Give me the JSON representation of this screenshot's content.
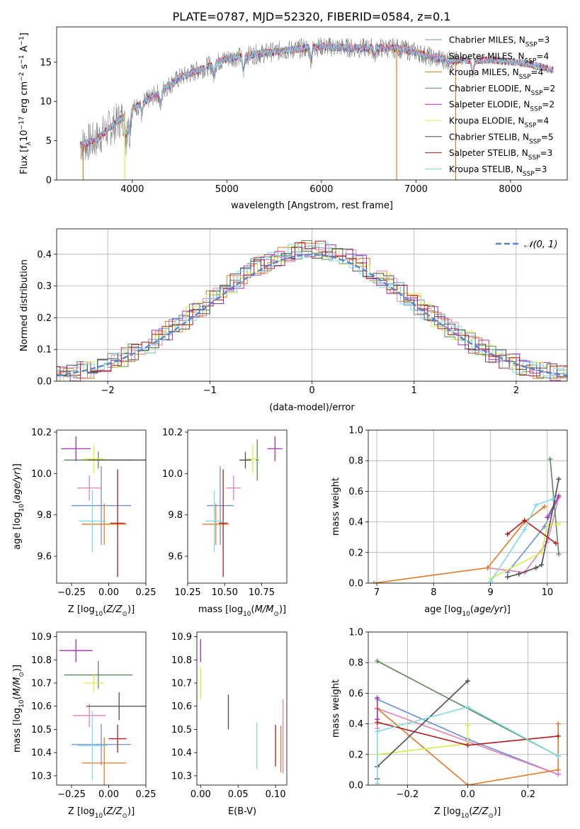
{
  "figure": {
    "title": "PLATE=0787, MJD=52320, FIBERID=0584, z=0.1"
  },
  "legend_entries": [
    {
      "label": "Chabrier MILES, N",
      "sub": "SSP",
      "suffix": "=3",
      "color": "#6b8fd6"
    },
    {
      "label": "Salpeter MILES, N",
      "sub": "SSP",
      "suffix": "=4",
      "color": "#e87fb7"
    },
    {
      "label": "Kroupa MILES, N",
      "sub": "SSP",
      "suffix": "=4",
      "color": "#e07b27"
    },
    {
      "label": "Chabrier ELODIE, N",
      "sub": "SSP",
      "suffix": "=2",
      "color": "#5a8a5a"
    },
    {
      "label": "Salpeter ELODIE, N",
      "sub": "SSP",
      "suffix": "=2",
      "color": "#a52fb5"
    },
    {
      "label": "Kroupa ELODIE, N",
      "sub": "SSP",
      "suffix": "=4",
      "color": "#d6ec4d"
    },
    {
      "label": "Chabrier STELIB, N",
      "sub": "SSP",
      "suffix": "=5",
      "color": "#4d4d4d"
    },
    {
      "label": "Salpeter STELIB, N",
      "sub": "SSP",
      "suffix": "=3",
      "color": "#b01d1d"
    },
    {
      "label": "Kroupa STELIB, N",
      "sub": "SSP",
      "suffix": "=3",
      "color": "#7edbe0"
    }
  ],
  "chart_data": [
    {
      "id": "spectrum",
      "type": "line",
      "xlabel": "wavelength [Angstrom, rest frame]",
      "ylabel": "Flux [f",
      "ylabel_full": "Flux [fλ10⁻¹⁷ erg cm⁻² s⁻¹ A⁻¹]",
      "xlim": [
        3200,
        8600
      ],
      "ylim": [
        0,
        19.5
      ],
      "xticks": [
        4000,
        5000,
        6000,
        7000,
        8000
      ],
      "yticks": [
        0,
        5,
        10,
        15
      ],
      "data_grey": {
        "color": "#808080",
        "x_range": [
          3450,
          7430
        ]
      },
      "continuum_points": [
        [
          3450,
          4.5
        ],
        [
          3600,
          5
        ],
        [
          3800,
          7
        ],
        [
          4000,
          9
        ],
        [
          4200,
          10.5
        ],
        [
          4500,
          13
        ],
        [
          4800,
          14.5
        ],
        [
          5000,
          15.5
        ],
        [
          5300,
          16
        ],
        [
          5600,
          16.5
        ],
        [
          6000,
          17
        ],
        [
          6400,
          16.8
        ],
        [
          6800,
          16.8
        ],
        [
          7000,
          16.3
        ],
        [
          7200,
          15.5
        ],
        [
          7400,
          15.2
        ],
        [
          7800,
          15.3
        ],
        [
          8200,
          14.8
        ],
        [
          8450,
          14
        ]
      ]
    },
    {
      "id": "residuals",
      "type": "histogram",
      "xlabel": "(data-model)/error",
      "ylabel": "Normed distribution",
      "xlim": [
        -2.5,
        2.5
      ],
      "ylim": [
        0,
        0.48
      ],
      "xticks": [
        -2,
        -1,
        0,
        1,
        2
      ],
      "yticks": [
        0.0,
        0.1,
        0.2,
        0.3,
        0.4
      ],
      "grid": true,
      "legend": "𝒩(0, 1)",
      "reference_curve": "normal(0,1)",
      "bin_width": 0.1
    },
    {
      "id": "age_vs_Z",
      "type": "scatter",
      "xlabel": "Z [log",
      "ylabel": "age  [log",
      "xlim": [
        -0.35,
        0.25
      ],
      "ylim": [
        9.47,
        10.21
      ],
      "xticks": [
        -0.25,
        0.0,
        0.25
      ],
      "yticks": [
        9.6,
        9.8,
        10.0,
        10.2
      ],
      "points": [
        {
          "color": "#6b8fd6",
          "x": -0.05,
          "xerr": 0.2,
          "y": 9.845,
          "yerr": 0.19
        },
        {
          "color": "#e87fb7",
          "x": -0.13,
          "xerr": 0.08,
          "y": 9.93,
          "yerr": 0.06
        },
        {
          "color": "#e07b27",
          "x": -0.03,
          "xerr": 0.15,
          "y": 9.755,
          "yerr": 0.1
        },
        {
          "color": "#5a8a5a",
          "x": -0.07,
          "xerr": 0.23,
          "y": 10.065,
          "yerr": 0.04
        },
        {
          "color": "#a52fb5",
          "x": -0.22,
          "xerr": 0.1,
          "y": 10.12,
          "yerr": 0.06
        },
        {
          "color": "#d6ec4d",
          "x": -0.1,
          "xerr": 0.07,
          "y": 10.07,
          "yerr": 0.07
        },
        {
          "color": "#4d4d4d",
          "x": 0.07,
          "xerr": 0.21,
          "y": 10.065,
          "yerr": 0.0
        },
        {
          "color": "#b01d1d",
          "x": 0.06,
          "xerr": 0.05,
          "y": 9.76,
          "yerr": 0.26
        },
        {
          "color": "#7edbe0",
          "x": -0.11,
          "xerr": 0.09,
          "y": 9.77,
          "yerr": 0.15
        }
      ]
    },
    {
      "id": "age_vs_mass",
      "type": "scatter",
      "xlabel": "mass [log",
      "xlim": [
        10.25,
        10.92
      ],
      "ylim": [
        9.47,
        10.21
      ],
      "xticks": [
        10.25,
        10.5,
        10.75
      ],
      "yticks": [
        9.6,
        9.8,
        10.0,
        10.2
      ],
      "points": [
        {
          "color": "#6b8fd6",
          "x": 10.47,
          "xerr": 0.09,
          "y": 9.845,
          "yerr": 0.19
        },
        {
          "color": "#e87fb7",
          "x": 10.56,
          "xerr": 0.05,
          "y": 9.93,
          "yerr": 0.06
        },
        {
          "color": "#e07b27",
          "x": 10.44,
          "xerr": 0.09,
          "y": 9.755,
          "yerr": 0.1
        },
        {
          "color": "#5a8a5a",
          "x": 10.72,
          "xerr": 0.01,
          "y": 10.065,
          "yerr": 0.1
        },
        {
          "color": "#a52fb5",
          "x": 10.84,
          "xerr": 0.05,
          "y": 10.12,
          "yerr": 0.06
        },
        {
          "color": "#d6ec4d",
          "x": 10.69,
          "xerr": 0.04,
          "y": 10.07,
          "yerr": 0.07
        },
        {
          "color": "#4d4d4d",
          "x": 10.64,
          "xerr": 0.04,
          "y": 10.065,
          "yerr": 0.04
        },
        {
          "color": "#b01d1d",
          "x": 10.49,
          "xerr": 0.03,
          "y": 9.76,
          "yerr": 0.26
        },
        {
          "color": "#7edbe0",
          "x": 10.43,
          "xerr": 0.06,
          "y": 9.77,
          "yerr": 0.15
        }
      ]
    },
    {
      "id": "weight_vs_age",
      "type": "line",
      "xlabel": "age  [log",
      "ylabel": "mass weight",
      "xlim": [
        6.85,
        10.35
      ],
      "ylim": [
        0,
        1.0
      ],
      "xticks": [
        7,
        8,
        9,
        10
      ],
      "yticks": [
        0.0,
        0.2,
        0.4,
        0.6,
        0.8,
        1.0
      ],
      "grid": true,
      "series": [
        {
          "color": "#6b8fd6",
          "x": [
            9.3,
            9.95,
            10.2
          ],
          "y": [
            0.07,
            0.37,
            0.56
          ]
        },
        {
          "color": "#e87fb7",
          "x": [
            8.95,
            9.6,
            10.0,
            10.2
          ],
          "y": [
            0.1,
            0.07,
            0.27,
            0.56
          ]
        },
        {
          "color": "#e07b27",
          "x": [
            6.95,
            8.95,
            9.6,
            9.95
          ],
          "y": [
            0.0,
            0.1,
            0.4,
            0.5
          ]
        },
        {
          "color": "#5a8a5a",
          "x": [
            10.05,
            10.2
          ],
          "y": [
            0.81,
            0.19
          ]
        },
        {
          "color": "#a52fb5",
          "x": [
            10.0,
            10.2
          ],
          "y": [
            0.43,
            0.57
          ]
        },
        {
          "color": "#d6ec4d",
          "x": [
            9.0,
            9.9,
            10.0,
            10.2
          ],
          "y": [
            0.03,
            0.2,
            0.38,
            0.39
          ]
        },
        {
          "color": "#4d4d4d",
          "x": [
            9.3,
            9.5,
            9.8,
            9.9,
            10.2
          ],
          "y": [
            0.04,
            0.06,
            0.1,
            0.12,
            0.68
          ]
        },
        {
          "color": "#b01d1d",
          "x": [
            9.3,
            9.6,
            10.15
          ],
          "y": [
            0.32,
            0.41,
            0.26
          ]
        },
        {
          "color": "#7edbe0",
          "x": [
            9.0,
            9.6,
            9.8,
            10.1
          ],
          "y": [
            0.01,
            0.35,
            0.51,
            0.55
          ]
        }
      ]
    },
    {
      "id": "mass_vs_Z",
      "type": "scatter",
      "xlabel": "Z [log",
      "ylabel": "mass [log",
      "xlim": [
        -0.35,
        0.25
      ],
      "ylim": [
        10.26,
        10.92
      ],
      "xticks": [
        -0.25,
        0.0,
        0.25
      ],
      "yticks": [
        10.3,
        10.4,
        10.5,
        10.6,
        10.7,
        10.8,
        10.9
      ],
      "points": [
        {
          "color": "#6b8fd6",
          "x": -0.05,
          "xerr": 0.2,
          "y": 10.435,
          "yerr": 0.09
        },
        {
          "color": "#e87fb7",
          "x": -0.13,
          "xerr": 0.11,
          "y": 10.56,
          "yerr": 0.05
        },
        {
          "color": "#e07b27",
          "x": -0.03,
          "xerr": 0.15,
          "y": 10.355,
          "yerr": 0.11
        },
        {
          "color": "#5a8a5a",
          "x": -0.07,
          "xerr": 0.23,
          "y": 10.735,
          "yerr": 0.06
        },
        {
          "color": "#a52fb5",
          "x": -0.22,
          "xerr": 0.11,
          "y": 10.84,
          "yerr": 0.05
        },
        {
          "color": "#d6ec4d",
          "x": -0.1,
          "xerr": 0.07,
          "y": 10.7,
          "yerr": 0.04
        },
        {
          "color": "#4d4d4d",
          "x": 0.07,
          "xerr": 0.22,
          "y": 10.6,
          "yerr": 0.06
        },
        {
          "color": "#b01d1d",
          "x": 0.06,
          "xerr": 0.06,
          "y": 10.46,
          "yerr": 0.06
        },
        {
          "color": "#7edbe0",
          "x": -0.11,
          "xerr": 0.1,
          "y": 10.43,
          "yerr": 0.15
        }
      ]
    },
    {
      "id": "mass_vs_ebv",
      "type": "scatter",
      "xlabel": "E(B-V)",
      "xlim": [
        -0.005,
        0.115
      ],
      "ylim": [
        10.26,
        10.92
      ],
      "xticks": [
        0.0,
        0.05,
        0.1
      ],
      "yticks": [
        10.3,
        10.4,
        10.5,
        10.6,
        10.7,
        10.8,
        10.9
      ],
      "points": [
        {
          "color": "#a52fb5",
          "x": 0.0,
          "y": 10.84,
          "yerr": 0.05
        },
        {
          "color": "#d6ec4d",
          "x": 0.0,
          "y": 10.7,
          "yerr": 0.07
        },
        {
          "color": "#4d4d4d",
          "x": 0.037,
          "y": 10.575,
          "yerr": 0.075
        },
        {
          "color": "#7edbe0",
          "x": 0.075,
          "y": 10.43,
          "yerr": 0.1
        },
        {
          "color": "#b01d1d",
          "x": 0.1,
          "y": 10.43,
          "yerr": 0.09
        },
        {
          "color": "#e07b27",
          "x": 0.107,
          "y": 10.415,
          "yerr": 0.1
        },
        {
          "color": "#e87fb7",
          "x": 0.11,
          "y": 10.47,
          "yerr": 0.16
        }
      ]
    },
    {
      "id": "weight_vs_Z",
      "type": "line",
      "xlabel": "Z [log",
      "ylabel": "mass weight",
      "xlim": [
        -0.33,
        0.33
      ],
      "ylim": [
        0,
        1.0
      ],
      "xticks": [
        -0.2,
        0.0,
        0.2
      ],
      "yticks": [
        0.0,
        0.2,
        0.4,
        0.6,
        0.8,
        1.0
      ],
      "grid": true,
      "series": [
        {
          "color": "#6b8fd6",
          "x": [
            -0.3,
            0.0,
            0.3
          ],
          "y": [
            0.56,
            0.3,
            0.07
          ]
        },
        {
          "color": "#e87fb7",
          "x": [
            -0.3,
            -0.3,
            0.3
          ],
          "y": [
            0.37,
            0.5,
            0.07
          ]
        },
        {
          "color": "#e07b27",
          "x": [
            -0.3,
            0.0,
            0.3,
            0.3
          ],
          "y": [
            0.5,
            0.0,
            0.1,
            0.4
          ]
        },
        {
          "color": "#5a8a5a",
          "x": [
            -0.3,
            0.3
          ],
          "y": [
            0.81,
            0.19
          ]
        },
        {
          "color": "#a52fb5",
          "x": [
            -0.3,
            -0.3
          ],
          "y": [
            0.43,
            0.57
          ]
        },
        {
          "color": "#d6ec4d",
          "x": [
            -0.3,
            0.0,
            0.0
          ],
          "y": [
            0.2,
            0.27,
            0.39
          ]
        },
        {
          "color": "#4d4d4d",
          "x": [
            -0.3,
            -0.3,
            0.0
          ],
          "y": [
            0.04,
            0.12,
            0.68
          ]
        },
        {
          "color": "#b01d1d",
          "x": [
            -0.3,
            0.0,
            0.3
          ],
          "y": [
            0.41,
            0.26,
            0.32
          ]
        },
        {
          "color": "#7edbe0",
          "x": [
            -0.3,
            -0.3,
            0.0,
            0.3
          ],
          "y": [
            0.01,
            0.35,
            0.51,
            0.19
          ]
        }
      ]
    }
  ]
}
